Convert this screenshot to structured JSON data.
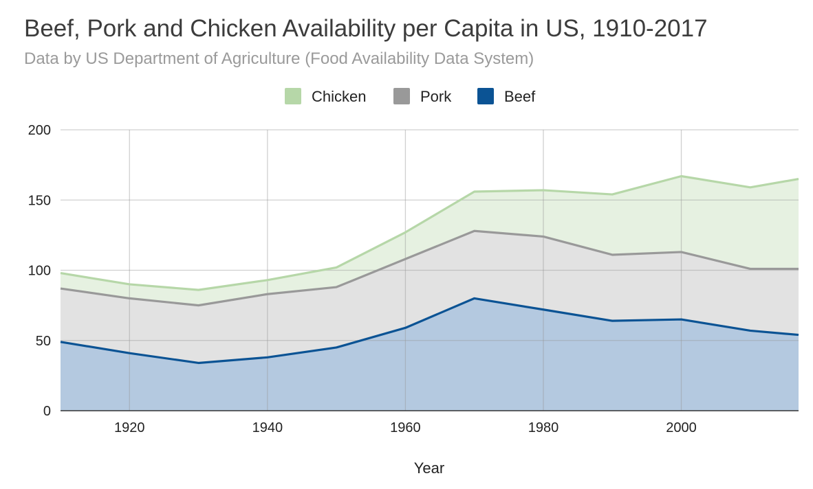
{
  "chart_data": {
    "type": "area",
    "stacked": true,
    "title": "Beef, Pork and Chicken Availability per Capita in US, 1910-2017",
    "subtitle": "Data by US Department of Agriculture (Food Availability Data System)",
    "xlabel": "Year",
    "ylabel": "",
    "x": [
      1910,
      1920,
      1930,
      1940,
      1950,
      1960,
      1970,
      1980,
      1990,
      2000,
      2010,
      2017
    ],
    "xlim": [
      1910,
      2017
    ],
    "ylim": [
      0,
      200
    ],
    "yticks": [
      0,
      50,
      100,
      150,
      200
    ],
    "xticks": [
      1920,
      1940,
      1960,
      1980,
      2000
    ],
    "grid": true,
    "legend_position": "top",
    "series": [
      {
        "name": "Beef",
        "color": "#0b5394",
        "fill": "#b4c9e0",
        "values": [
          49,
          41,
          34,
          38,
          45,
          59,
          80,
          72,
          64,
          65,
          57,
          54
        ]
      },
      {
        "name": "Pork",
        "color": "#999999",
        "fill": "#e2e2e2",
        "values": [
          38,
          39,
          41,
          45,
          43,
          49,
          48,
          52,
          47,
          48,
          44,
          47
        ]
      },
      {
        "name": "Chicken",
        "color": "#b6d7a8",
        "fill": "#e6f1e1",
        "values": [
          11,
          10,
          11,
          10,
          14,
          19,
          28,
          33,
          43,
          54,
          58,
          64
        ]
      }
    ],
    "legend_order": [
      "Chicken",
      "Pork",
      "Beef"
    ]
  }
}
